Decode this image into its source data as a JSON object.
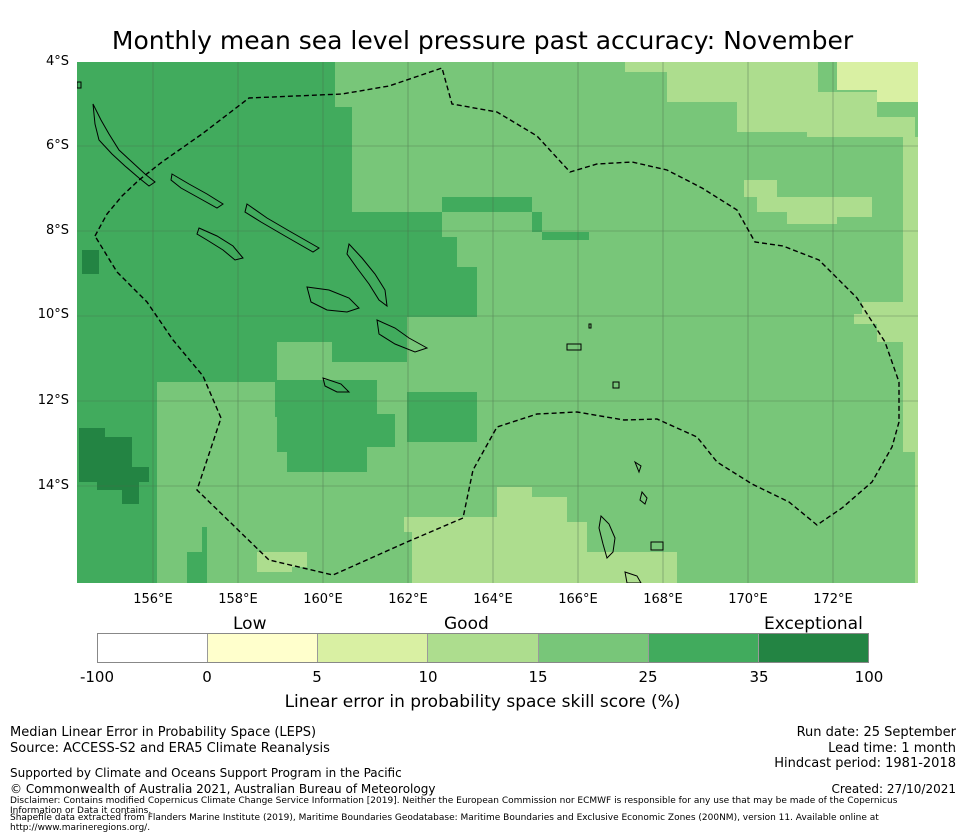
{
  "title": "Monthly mean sea level pressure past accuracy: November",
  "map": {
    "lat_labels": [
      "4°S",
      "6°S",
      "8°S",
      "10°S",
      "12°S",
      "14°S"
    ],
    "lon_labels": [
      "156°E",
      "158°E",
      "160°E",
      "162°E",
      "164°E",
      "166°E",
      "168°E",
      "170°E",
      "172°E"
    ],
    "colors": {
      "band_0_5": "#ffffcc",
      "band_5_10": "#d9f0a3",
      "band_10_15": "#addd8e",
      "band_15_25": "#78c679",
      "band_25_35": "#41ab5d",
      "band_35_100": "#238443",
      "gridline": "#4a6b4a",
      "coastline": "#000000",
      "eez_boundary": "#000000"
    }
  },
  "legend": {
    "categories": [
      "Low",
      "Good",
      "Exceptional"
    ],
    "ticks": [
      "-100",
      "0",
      "5",
      "10",
      "15",
      "25",
      "35",
      "100"
    ],
    "colors": [
      "#ffffff",
      "#ffffcc",
      "#d9f0a3",
      "#addd8e",
      "#78c679",
      "#41ab5d",
      "#238443"
    ],
    "label": "Linear error in probability space skill score (%)"
  },
  "footer": {
    "method": "Median Linear Error in Probability Space (LEPS)",
    "source": "Source: ACCESS-S2 and ERA5 Climate Reanalysis",
    "support": "Supported by Climate and Oceans Support Program in the Pacific",
    "copyright": "© Commonwealth of Australia 2021, Australian Bureau of Meteorology",
    "disclaimer_1": "Disclaimer: Contains modified Copernicus Climate Change Service Information [2019]. Neither the European Commission nor ECMWF is responsible for any use that may be made of the Copernicus",
    "disclaimer_2": "Information or Data it contains.",
    "shapefile_1": "Shapefile data extracted from Flanders Marine Institute (2019), Maritime Boundaries Geodatabase: Maritime Boundaries and Exclusive Economic Zones (200NM), version 11. Available online at",
    "shapefile_2": "http://www.marineregions.org/.",
    "run_date": "Run date: 25 September",
    "lead_time": "Lead time: 1 month",
    "hindcast": "Hindcast period: 1981-2018",
    "created": "Created: 27/10/2021"
  }
}
